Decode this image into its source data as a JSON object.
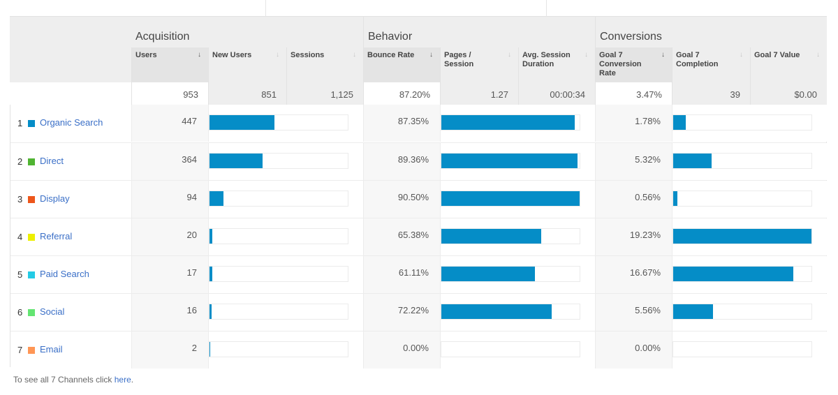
{
  "header": {
    "groups": [
      "Acquisition",
      "Behavior",
      "Conversions"
    ],
    "metrics": [
      {
        "label": "Users",
        "sorted": true
      },
      {
        "label": "New Users",
        "sorted": false
      },
      {
        "label": "Sessions",
        "sorted": false
      },
      {
        "label": "Bounce Rate",
        "sorted": false
      },
      {
        "label": "Pages / Session",
        "sorted": false
      },
      {
        "label": "Avg. Session Duration",
        "sorted": false
      },
      {
        "label": "Goal 7 Conversion Rate",
        "sorted": false
      },
      {
        "label": "Goal 7 Completion",
        "sorted": false
      },
      {
        "label": "Goal 7 Value",
        "sorted": false
      }
    ],
    "sort_arrow": "↓"
  },
  "totals": {
    "users": "953",
    "new_users": "851",
    "sessions": "1,125",
    "bounce_rate": "87.20%",
    "pages_per_session": "1.27",
    "avg_session_duration": "00:00:34",
    "goal7_conversion_rate": "3.47%",
    "goal7_completion": "39",
    "goal7_value": "$0.00"
  },
  "rows": [
    {
      "index": "1",
      "channel": "Organic Search",
      "swatch": "#058dc7",
      "users": "447",
      "users_pct": 46.9,
      "bounce_rate": "87.35%",
      "bounce_pct": 96.5,
      "conv_rate": "1.78%",
      "conv_pct": 9.3
    },
    {
      "index": "2",
      "channel": "Direct",
      "swatch": "#50b432",
      "users": "364",
      "users_pct": 38.2,
      "bounce_rate": "89.36%",
      "bounce_pct": 98.7,
      "conv_rate": "5.32%",
      "conv_pct": 27.7
    },
    {
      "index": "3",
      "channel": "Display",
      "swatch": "#ed561b",
      "users": "94",
      "users_pct": 9.9,
      "bounce_rate": "90.50%",
      "bounce_pct": 100,
      "conv_rate": "0.56%",
      "conv_pct": 2.9
    },
    {
      "index": "4",
      "channel": "Referral",
      "swatch": "#edef00",
      "users": "20",
      "users_pct": 2.1,
      "bounce_rate": "65.38%",
      "bounce_pct": 72.2,
      "conv_rate": "19.23%",
      "conv_pct": 100
    },
    {
      "index": "5",
      "channel": "Paid Search",
      "swatch": "#24cbe5",
      "users": "17",
      "users_pct": 1.8,
      "bounce_rate": "61.11%",
      "bounce_pct": 67.5,
      "conv_rate": "16.67%",
      "conv_pct": 86.7
    },
    {
      "index": "6",
      "channel": "Social",
      "swatch": "#64e572",
      "users": "16",
      "users_pct": 1.7,
      "bounce_rate": "72.22%",
      "bounce_pct": 79.8,
      "conv_rate": "5.56%",
      "conv_pct": 28.9
    },
    {
      "index": "7",
      "channel": "Email",
      "swatch": "#ff9655",
      "users": "2",
      "users_pct": 0.2,
      "bounce_rate": "0.00%",
      "bounce_pct": 0,
      "conv_rate": "0.00%",
      "conv_pct": 0
    }
  ],
  "footer": {
    "text": "To see all 7 Channels click ",
    "link": "here",
    "suffix": "."
  },
  "colors": {
    "bar": "#058dc7",
    "link": "#3a6fc7"
  }
}
